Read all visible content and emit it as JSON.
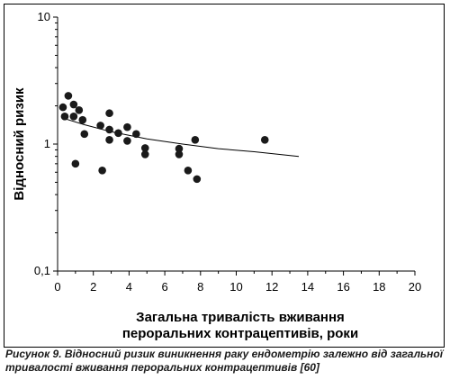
{
  "chart_data": {
    "type": "scatter",
    "title": "",
    "xlabel": "Загальна тривалість вживання",
    "xlabel_line2": "пероральних контрацептивів, роки",
    "ylabel": "Відносний ризик",
    "xlim": [
      0,
      20
    ],
    "ylim": [
      0.1,
      10
    ],
    "yscale": "log",
    "x_ticks": [
      "0",
      "2",
      "4",
      "6",
      "8",
      "10",
      "12",
      "14",
      "16",
      "18",
      "20"
    ],
    "y_ticks": [
      "10",
      "1",
      "0,1"
    ],
    "grid": false,
    "points": [
      {
        "x": 0.3,
        "y": 1.95
      },
      {
        "x": 0.4,
        "y": 1.65
      },
      {
        "x": 0.6,
        "y": 2.4
      },
      {
        "x": 0.9,
        "y": 2.05
      },
      {
        "x": 0.9,
        "y": 1.65
      },
      {
        "x": 1.0,
        "y": 0.7
      },
      {
        "x": 1.2,
        "y": 1.85
      },
      {
        "x": 1.4,
        "y": 1.55
      },
      {
        "x": 1.5,
        "y": 1.2
      },
      {
        "x": 2.4,
        "y": 1.4
      },
      {
        "x": 2.5,
        "y": 0.62
      },
      {
        "x": 2.9,
        "y": 1.75
      },
      {
        "x": 2.9,
        "y": 1.3
      },
      {
        "x": 2.9,
        "y": 1.08
      },
      {
        "x": 3.4,
        "y": 1.22
      },
      {
        "x": 3.9,
        "y": 1.36
      },
      {
        "x": 3.9,
        "y": 1.06
      },
      {
        "x": 4.4,
        "y": 1.2
      },
      {
        "x": 4.9,
        "y": 0.93
      },
      {
        "x": 4.9,
        "y": 0.83
      },
      {
        "x": 6.8,
        "y": 0.92
      },
      {
        "x": 6.8,
        "y": 0.83
      },
      {
        "x": 7.3,
        "y": 0.62
      },
      {
        "x": 7.7,
        "y": 1.08
      },
      {
        "x": 7.8,
        "y": 0.53
      },
      {
        "x": 11.6,
        "y": 1.08
      }
    ],
    "trend_line": [
      {
        "x": 0.3,
        "y": 1.6
      },
      {
        "x": 1.5,
        "y": 1.42
      },
      {
        "x": 3.0,
        "y": 1.25
      },
      {
        "x": 5.0,
        "y": 1.1
      },
      {
        "x": 7.0,
        "y": 1.0
      },
      {
        "x": 9.0,
        "y": 0.92
      },
      {
        "x": 11.0,
        "y": 0.87
      },
      {
        "x": 13.5,
        "y": 0.8
      }
    ]
  },
  "caption": {
    "lead": "Рисунок 9.",
    "text": "Відносний ризик виникнення раку ендометрію залежно від загальної тривалості вживання пероральних контрацептивів",
    "ref": "[60]"
  },
  "colors": {
    "marker": "#1a1a1a",
    "line": "#000000",
    "axis": "#000000",
    "caption": "#1a1a1a"
  }
}
